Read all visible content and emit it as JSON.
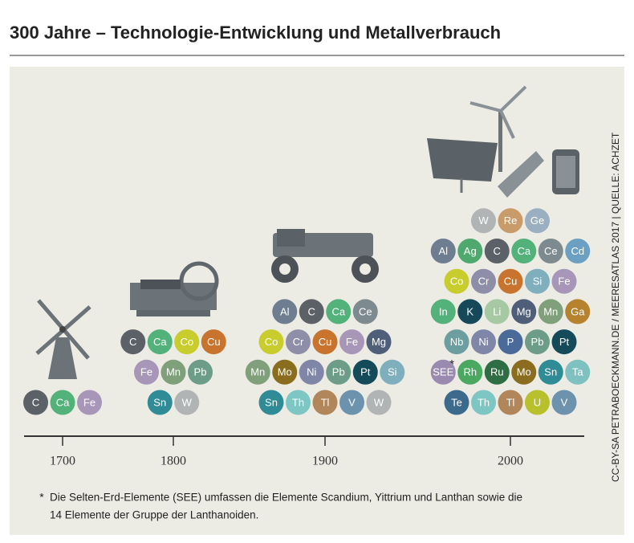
{
  "title": "300 Jahre – Technologie-Entwicklung und Metallverbrauch",
  "credit": "CC-BY-SA PETRABOECKMANN.DE / MEERESATLAS 2017 | QUELLE: ACHZET",
  "footnote": {
    "mark": "*",
    "lines": [
      "Die Selten-Erd-Elemente (SEE) umfassen die Elemente Scandium, Yittrium und Lanthan sowie die",
      "14 Elemente der Gruppe der Lanthanoiden."
    ]
  },
  "groups": [
    {
      "year": "1700",
      "rows": [
        [
          {
            "symbol": "C",
            "color": "#5b6166"
          },
          {
            "symbol": "Ca",
            "color": "#52b27a"
          },
          {
            "symbol": "Fe",
            "color": "#a796b8"
          }
        ]
      ]
    },
    {
      "year": "1800",
      "rows": [
        [
          {
            "symbol": "C",
            "color": "#5b6166"
          },
          {
            "symbol": "Ca",
            "color": "#52b27a"
          },
          {
            "symbol": "Co",
            "color": "#c8cc2c"
          },
          {
            "symbol": "Cu",
            "color": "#c8742e"
          }
        ],
        [
          {
            "symbol": "Fe",
            "color": "#a796b8"
          },
          {
            "symbol": "Mn",
            "color": "#7fa07a"
          },
          {
            "symbol": "Pb",
            "color": "#6d9d88"
          }
        ],
        [
          {
            "symbol": "Sn",
            "color": "#2f8c96"
          },
          {
            "symbol": "W",
            "color": "#b0b4b5"
          }
        ]
      ]
    },
    {
      "year": "1900",
      "rows": [
        [
          {
            "symbol": "Al",
            "color": "#6f7d90"
          },
          {
            "symbol": "C",
            "color": "#5b6166"
          },
          {
            "symbol": "Ca",
            "color": "#52b27a"
          },
          {
            "symbol": "Ce",
            "color": "#7d8b91"
          }
        ],
        [
          {
            "symbol": "Co",
            "color": "#c8cc2c"
          },
          {
            "symbol": "Cr",
            "color": "#8f8ea8"
          },
          {
            "symbol": "Cu",
            "color": "#c8742e"
          },
          {
            "symbol": "Fe",
            "color": "#a796b8"
          },
          {
            "symbol": "Mg",
            "color": "#4f5f7a"
          }
        ],
        [
          {
            "symbol": "Mn",
            "color": "#7fa07a"
          },
          {
            "symbol": "Mo",
            "color": "#8a6d1e"
          },
          {
            "symbol": "Ni",
            "color": "#7f86a8"
          },
          {
            "symbol": "Pb",
            "color": "#6d9d88"
          },
          {
            "symbol": "Pt",
            "color": "#144a5a"
          },
          {
            "symbol": "Si",
            "color": "#7faebd"
          }
        ],
        [
          {
            "symbol": "Sn",
            "color": "#2f8c96"
          },
          {
            "symbol": "Th",
            "color": "#7dc6c4"
          },
          {
            "symbol": "Tl",
            "color": "#b0865a"
          },
          {
            "symbol": "V",
            "color": "#6c92ad"
          },
          {
            "symbol": "W",
            "color": "#b0b4b5"
          }
        ]
      ]
    },
    {
      "year": "2000",
      "rows": [
        [
          {
            "symbol": "W",
            "color": "#b0b4b5"
          },
          {
            "symbol": "Re",
            "color": "#c99a6a"
          },
          {
            "symbol": "Ge",
            "color": "#9ab0c0"
          }
        ],
        [
          {
            "symbol": "Al",
            "color": "#6f7d90"
          },
          {
            "symbol": "Ag",
            "color": "#4fa86e"
          },
          {
            "symbol": "C",
            "color": "#5b6166"
          },
          {
            "symbol": "Ca",
            "color": "#52b27a"
          },
          {
            "symbol": "Ce",
            "color": "#7d8b91"
          },
          {
            "symbol": "Cd",
            "color": "#6ca0c2"
          }
        ],
        [
          {
            "symbol": "Co",
            "color": "#c8cc2c"
          },
          {
            "symbol": "Cr",
            "color": "#8f8ea8"
          },
          {
            "symbol": "Cu",
            "color": "#c8742e"
          },
          {
            "symbol": "Si",
            "color": "#7faebd"
          },
          {
            "symbol": "Fe",
            "color": "#a796b8"
          }
        ],
        [
          {
            "symbol": "In",
            "color": "#52b27a"
          },
          {
            "symbol": "K",
            "color": "#16485a"
          },
          {
            "symbol": "Li",
            "color": "#a6c8a2"
          },
          {
            "symbol": "Mg",
            "color": "#4f5f7a"
          },
          {
            "symbol": "Mn",
            "color": "#7fa07a"
          },
          {
            "symbol": "Ga",
            "color": "#b6822e"
          }
        ],
        [
          {
            "symbol": "Nb",
            "color": "#6c9ea0"
          },
          {
            "symbol": "Ni",
            "color": "#7f86a8"
          },
          {
            "symbol": "P",
            "color": "#4a6a9a"
          },
          {
            "symbol": "Pb",
            "color": "#6d9d88"
          },
          {
            "symbol": "Pt",
            "color": "#144a5a"
          }
        ],
        [
          {
            "symbol": "SEE",
            "color": "#9a8ab0"
          },
          {
            "symbol": "Rh",
            "color": "#4aa860"
          },
          {
            "symbol": "Ru",
            "color": "#2f6e44"
          },
          {
            "symbol": "Mo",
            "color": "#8a6d1e"
          },
          {
            "symbol": "Sn",
            "color": "#2f8c96"
          },
          {
            "symbol": "Ta",
            "color": "#7fc0c0"
          }
        ],
        [
          {
            "symbol": "Te",
            "color": "#3c6a8c"
          },
          {
            "symbol": "Th",
            "color": "#7dc6c4"
          },
          {
            "symbol": "Tl",
            "color": "#b0865a"
          },
          {
            "symbol": "U",
            "color": "#b8c02c"
          },
          {
            "symbol": "V",
            "color": "#6c92ad"
          }
        ]
      ]
    }
  ]
}
